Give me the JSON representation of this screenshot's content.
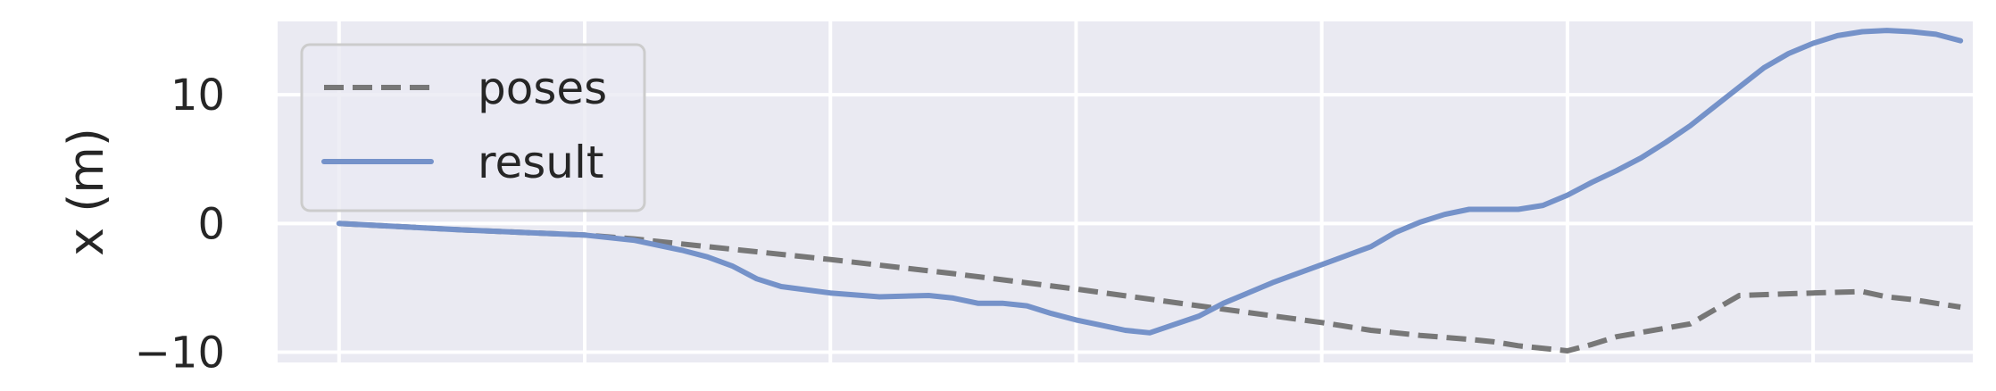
{
  "chart_data": {
    "type": "line",
    "title": "",
    "xlabel": "",
    "ylabel": "x (m)",
    "xlim": [
      -2.5,
      66.5
    ],
    "ylim": [
      -10.8,
      15.7
    ],
    "yticks": [
      -10,
      0,
      10
    ],
    "ytick_labels": [
      "−10",
      "0",
      "10"
    ],
    "xgrid": [
      0,
      10,
      20,
      30,
      40,
      50,
      60
    ],
    "grid": true,
    "background": "#eaeaf2",
    "legend": {
      "position": "top-left"
    },
    "series": [
      {
        "name": "poses",
        "style": "dashed",
        "color": "#777777",
        "x": [
          0,
          5,
          10,
          12,
          15,
          20,
          25,
          30,
          35,
          40,
          42,
          43,
          44,
          46,
          47,
          48,
          50,
          51,
          52,
          55,
          57,
          60,
          62,
          63,
          64,
          66
        ],
        "y": [
          0,
          -0.5,
          -0.9,
          -1.2,
          -1.8,
          -2.8,
          -3.9,
          -5.1,
          -6.4,
          -7.7,
          -8.3,
          -8.5,
          -8.7,
          -9.0,
          -9.2,
          -9.5,
          -9.9,
          -9.4,
          -8.8,
          -7.8,
          -5.6,
          -5.4,
          -5.3,
          -5.7,
          -5.9,
          -6.5
        ]
      },
      {
        "name": "result",
        "style": "solid",
        "color": "#7592c9",
        "x": [
          0,
          5,
          10,
          12,
          14,
          15,
          16,
          17,
          18,
          20,
          22,
          24,
          25,
          26,
          27,
          28,
          29,
          30,
          31,
          32,
          33,
          35,
          36,
          38,
          40,
          42,
          43,
          44,
          45,
          46,
          47,
          48,
          49,
          50,
          51,
          52,
          53,
          54,
          55,
          56,
          57,
          58,
          59,
          60,
          61,
          62,
          63,
          64,
          65,
          66
        ],
        "y": [
          0,
          -0.5,
          -0.9,
          -1.3,
          -2.1,
          -2.6,
          -3.3,
          -4.3,
          -4.9,
          -5.4,
          -5.7,
          -5.6,
          -5.8,
          -6.2,
          -6.2,
          -6.4,
          -7.0,
          -7.5,
          -7.9,
          -8.3,
          -8.5,
          -7.2,
          -6.2,
          -4.6,
          -3.2,
          -1.8,
          -0.7,
          0.1,
          0.7,
          1.1,
          1.1,
          1.1,
          1.4,
          2.2,
          3.2,
          4.1,
          5.1,
          6.3,
          7.6,
          9.1,
          10.6,
          12.1,
          13.2,
          14.0,
          14.6,
          14.9,
          15.0,
          14.9,
          14.7,
          14.2
        ]
      }
    ]
  }
}
